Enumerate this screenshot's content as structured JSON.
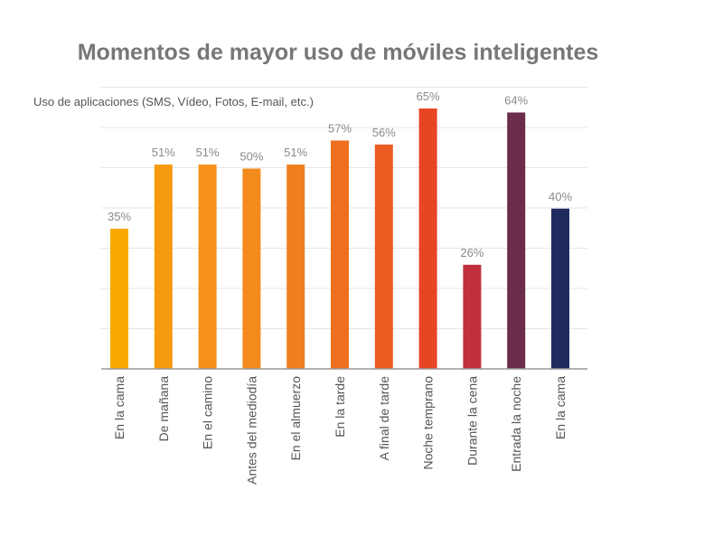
{
  "chart_data": {
    "type": "bar",
    "title": "Momentos de mayor uso de móviles inteligentes",
    "subtitle": "Uso de aplicaciones (SMS, Vídeo, Fotos, E-mail, etc.)",
    "categories": [
      "En la cama",
      "De mañana",
      "En el camino",
      "Antes del mediodía",
      "En el almuerzo",
      "En la tarde",
      "A final de tarde",
      "Noche temprano",
      "Durante la cena",
      "Entrada la noche",
      "En la cama"
    ],
    "values": [
      35,
      51,
      51,
      50,
      51,
      57,
      56,
      65,
      26,
      64,
      40
    ],
    "value_labels": [
      "35%",
      "51%",
      "51%",
      "50%",
      "51%",
      "57%",
      "56%",
      "65%",
      "26%",
      "64%",
      "40%"
    ],
    "colors": [
      "#F7A800",
      "#F69A0F",
      "#F5901A",
      "#F28A1C",
      "#F07F1E",
      "#EE6F20",
      "#EA5C22",
      "#E84524",
      "#C0303C",
      "#6B2D4A",
      "#1F2A5E"
    ],
    "ylim": [
      0,
      70
    ],
    "grid": true,
    "xlabel": "",
    "ylabel": ""
  }
}
